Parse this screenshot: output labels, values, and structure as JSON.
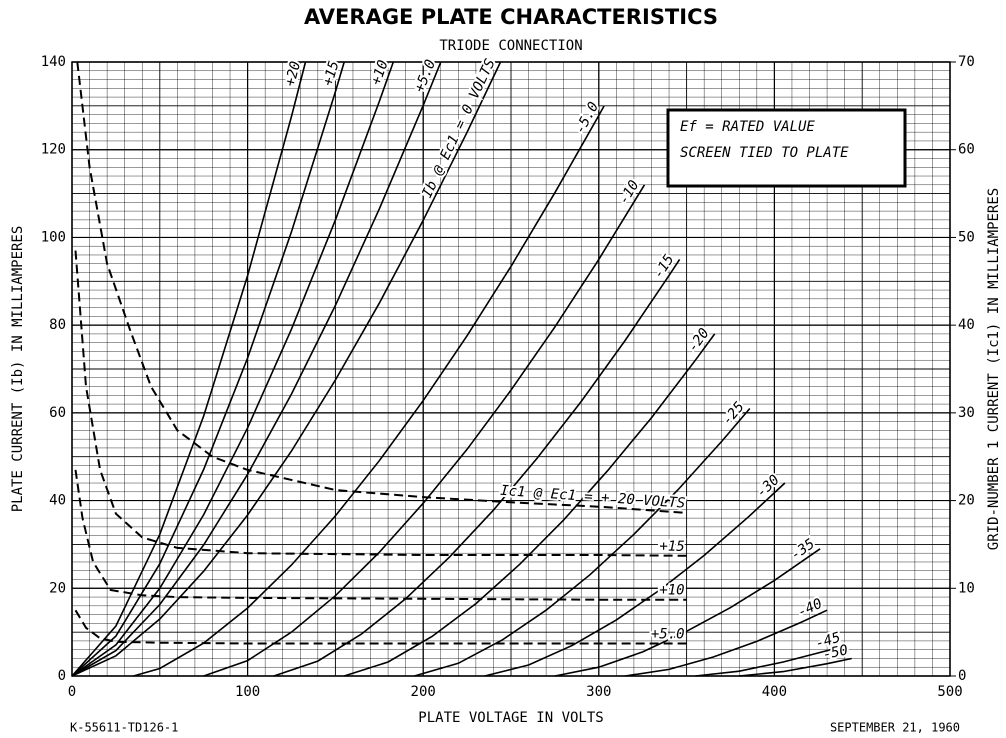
{
  "chart_data": {
    "type": "line",
    "title": "AVERAGE PLATE CHARACTERISTICS",
    "subtitle": "TRIODE CONNECTION",
    "xlabel": "PLATE VOLTAGE IN VOLTS",
    "ylabel": "PLATE CURRENT (Ib) IN MILLIAMPERES",
    "y2label": "GRID-NUMBER 1 CURRENT (Ic1) IN MILLIAMPERES",
    "annotations": [
      "Ef = RATED VALUE",
      "SCREEN TIED TO PLATE"
    ],
    "footer_left": "K-55611-TD126-1",
    "footer_right": "SEPTEMBER 21, 1960",
    "xlim": [
      0,
      500
    ],
    "xticks": [
      0,
      100,
      200,
      300,
      400,
      500
    ],
    "ylim": [
      0,
      140
    ],
    "yticks": [
      0,
      20,
      40,
      60,
      80,
      100,
      120,
      140
    ],
    "y2lim": [
      0,
      70
    ],
    "y2ticks": [
      0,
      10,
      20,
      30,
      40,
      50,
      60,
      70
    ],
    "grid": true,
    "color": "#000000",
    "series": [
      {
        "name": "+20",
        "x": [
          0,
          25,
          50,
          75,
          100,
          125,
          133
        ],
        "values": [
          0,
          11.4,
          32.3,
          59.3,
          91.3,
          127.6,
          140
        ]
      },
      {
        "name": "+15",
        "x": [
          0,
          25,
          50,
          75,
          100,
          125,
          150,
          155
        ],
        "values": [
          0,
          9.1,
          25.6,
          47.1,
          72.5,
          101.3,
          133.2,
          140
        ]
      },
      {
        "name": "+10",
        "x": [
          0,
          25,
          50,
          75,
          100,
          125,
          150,
          175,
          183
        ],
        "values": [
          0,
          7.1,
          20.0,
          36.8,
          56.6,
          79.1,
          104,
          131,
          140
        ]
      },
      {
        "name": "+5.0",
        "x": [
          0,
          25,
          50,
          75,
          100,
          125,
          150,
          175,
          200,
          210
        ],
        "values": [
          0,
          5.8,
          16.3,
          29.9,
          46,
          64.3,
          84.5,
          106.5,
          130.1,
          140
        ]
      },
      {
        "name": "Ib @ Ec1 = 0 VOLTS",
        "x": [
          0,
          25,
          50,
          75,
          100,
          125,
          150,
          175,
          200,
          225,
          244
        ],
        "values": [
          0,
          4.6,
          13,
          23.9,
          36.7,
          51.3,
          67.5,
          85,
          103.9,
          124,
          140
        ]
      },
      {
        "name": "-5.0",
        "x": [
          35,
          50,
          75,
          100,
          125,
          150,
          175,
          200,
          225,
          250,
          275,
          300,
          303
        ],
        "values": [
          0,
          1.7,
          7.5,
          15.5,
          25.3,
          36.5,
          49.1,
          62.8,
          77.6,
          93.4,
          110.2,
          127.8,
          130
        ]
      },
      {
        "name": "-10",
        "x": [
          75,
          100,
          125,
          150,
          175,
          200,
          225,
          250,
          275,
          300,
          326
        ],
        "values": [
          0,
          3.5,
          10,
          18.3,
          28.2,
          39.4,
          51.7,
          65.2,
          79.6,
          95,
          112
        ]
      },
      {
        "name": "-15",
        "x": [
          115,
          140,
          165,
          190,
          215,
          240,
          265,
          290,
          315,
          340,
          346
        ],
        "values": [
          0,
          3.4,
          9.6,
          17.6,
          27.1,
          37.8,
          49.7,
          62.6,
          76.5,
          91.3,
          95
        ]
      },
      {
        "name": "-20",
        "x": [
          155,
          180,
          205,
          230,
          255,
          280,
          305,
          330,
          355,
          366
        ],
        "values": [
          0,
          3.2,
          9,
          16.5,
          25.5,
          35.6,
          46.8,
          58.9,
          72,
          78
        ]
      },
      {
        "name": "-25",
        "x": [
          195,
          220,
          245,
          270,
          295,
          320,
          345,
          370,
          386
        ],
        "values": [
          0,
          2.9,
          8.2,
          15,
          23.1,
          32.3,
          42.4,
          53.5,
          61
        ]
      },
      {
        "name": "-30",
        "x": [
          235,
          260,
          285,
          310,
          335,
          360,
          385,
          406
        ],
        "values": [
          0,
          2.5,
          7,
          12.8,
          19.7,
          27.5,
          36.2,
          44
        ]
      },
      {
        "name": "-35",
        "x": [
          275,
          300,
          325,
          350,
          375,
          400,
          426
        ],
        "values": [
          0,
          2,
          5.5,
          10.2,
          15.6,
          21.8,
          29
        ]
      },
      {
        "name": "-40",
        "x": [
          315,
          340,
          365,
          390,
          415,
          430
        ],
        "values": [
          0,
          1.5,
          4.3,
          7.9,
          12.2,
          15
        ]
      },
      {
        "name": "-45",
        "x": [
          355,
          380,
          405,
          430,
          440
        ],
        "values": [
          0,
          1.1,
          3.2,
          5.8,
          7
        ]
      },
      {
        "name": "-50",
        "x": [
          380,
          405,
          430,
          444
        ],
        "values": [
          0,
          1,
          2.8,
          4
        ]
      },
      {
        "name": "Ic1 @ Ec1 = + 20 VOLTS",
        "axis": "y2",
        "style": "dashed",
        "x": [
          3,
          10,
          20,
          33,
          45,
          60,
          80,
          100,
          150,
          200,
          250,
          300,
          350
        ],
        "values": [
          70,
          58,
          47,
          39.5,
          33,
          28,
          25,
          23.5,
          21.2,
          20.4,
          19.8,
          19.3,
          18.6
        ]
      },
      {
        "name": "+15",
        "axis": "y2",
        "style": "dashed",
        "x": [
          2,
          8,
          16,
          25,
          40,
          60,
          100,
          150,
          200,
          250,
          300,
          350
        ],
        "values": [
          48.5,
          33,
          23.5,
          18.5,
          15.8,
          14.6,
          14,
          13.9,
          13.8,
          13.8,
          13.8,
          13.7
        ]
      },
      {
        "name": "+10",
        "axis": "y2",
        "style": "dashed",
        "x": [
          2,
          6,
          12,
          22,
          40,
          60,
          100,
          200,
          300,
          350
        ],
        "values": [
          23.5,
          18,
          13,
          9.8,
          9.2,
          9,
          8.9,
          8.8,
          8.7,
          8.7
        ]
      },
      {
        "name": "+5.0",
        "axis": "y2",
        "style": "dashed",
        "x": [
          2,
          8,
          16,
          25,
          50,
          100,
          200,
          300,
          350
        ],
        "values": [
          7.5,
          5.5,
          4.3,
          3.9,
          3.8,
          3.7,
          3.7,
          3.7,
          3.7
        ]
      }
    ]
  }
}
